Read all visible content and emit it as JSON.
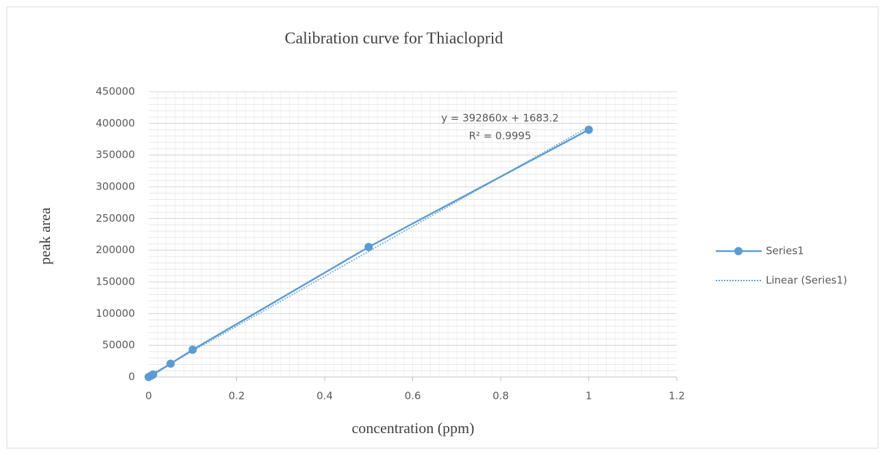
{
  "chart_data": {
    "type": "scatter",
    "title": "Calibration  curve  for  Thiacloprid",
    "x_label": "concentration  (ppm)",
    "y_label": "peak  area",
    "x": [
      0,
      0.005,
      0.01,
      0.05,
      0.1,
      0.5,
      1
    ],
    "series": [
      {
        "name": "Series1",
        "color": "#5b9bd5",
        "values": [
          0,
          1900,
          3900,
          21000,
          43000,
          205000,
          390000
        ]
      }
    ],
    "trendline": {
      "name": "Linear (Series1)",
      "slope": 392860,
      "intercept": 1683.2,
      "equation": "y = 392860x + 1683.2",
      "r2_label": "R² = 0.9995"
    },
    "xlim": [
      0,
      1.2
    ],
    "xticks": [
      0,
      0.2,
      0.4,
      0.6,
      0.8,
      1,
      1.2
    ],
    "ylim": [
      0,
      450000
    ],
    "yticks": [
      0,
      50000,
      100000,
      150000,
      200000,
      250000,
      300000,
      350000,
      400000,
      450000
    ],
    "grid": true,
    "minor_grid": {
      "x": 0.02,
      "y": 10000
    },
    "legend": "right"
  }
}
